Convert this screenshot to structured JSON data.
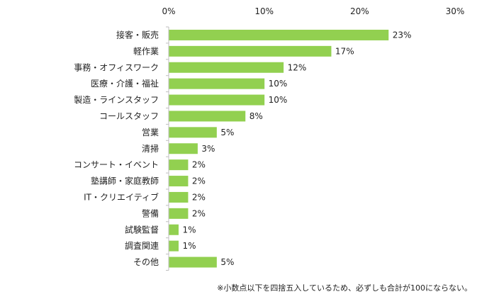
{
  "chart_data": {
    "type": "bar",
    "orientation": "horizontal",
    "categories": [
      "接客・販売",
      "軽作業",
      "事務・オフィスワーク",
      "医療・介護・福祉",
      "製造・ラインスタッフ",
      "コールスタッフ",
      "営業",
      "清掃",
      "コンサート・イベント",
      "塾講師・家庭教師",
      "IT・クリエイティブ",
      "警備",
      "試験監督",
      "調査関連",
      "その他"
    ],
    "values": [
      23,
      17,
      12,
      10,
      10,
      8,
      5,
      3,
      2,
      2,
      2,
      2,
      1,
      1,
      5
    ],
    "value_labels": [
      "23%",
      "17%",
      "12%",
      "10%",
      "10%",
      "8%",
      "5%",
      "3%",
      "2%",
      "2%",
      "2%",
      "2%",
      "1%",
      "1%",
      "5%"
    ],
    "xlim": [
      0,
      30
    ],
    "ticks": [
      0,
      10,
      20,
      30
    ],
    "tick_labels": [
      "0%",
      "10%",
      "20%",
      "30%"
    ],
    "axis_position": "top",
    "grid": false,
    "bar_color": "#92d050"
  },
  "footnote": "※小数点以下を四捨五入しているため、必ずしも合計が100にならない。"
}
